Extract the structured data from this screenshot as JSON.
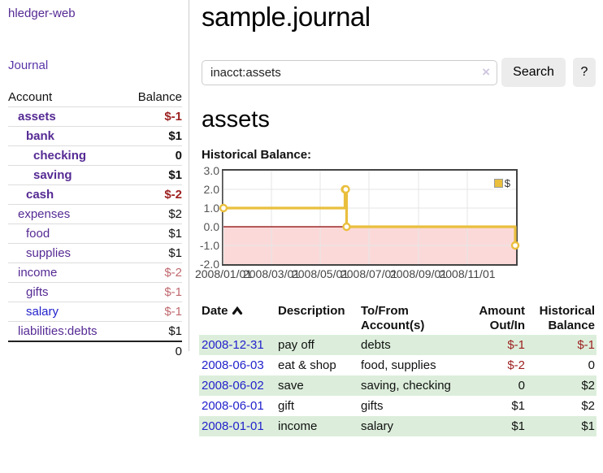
{
  "sidebar": {
    "app_title": "hledger-web",
    "journal_label": "Journal",
    "accounts_table": {
      "header_account": "Account",
      "header_balance": "Balance",
      "rows": [
        {
          "label": "assets",
          "level": 1,
          "bold": true,
          "link_color": "purple",
          "balance": "$-1",
          "balance_style": "neg"
        },
        {
          "label": "bank",
          "level": 2,
          "bold": true,
          "link_color": "purple",
          "balance": "$1",
          "balance_style": "plain"
        },
        {
          "label": "checking",
          "level": 3,
          "bold": true,
          "link_color": "purple",
          "balance": "0",
          "balance_style": "plain"
        },
        {
          "label": "saving",
          "level": 3,
          "bold": true,
          "link_color": "purple",
          "balance": "$1",
          "balance_style": "plain"
        },
        {
          "label": "cash",
          "level": 2,
          "bold": true,
          "link_color": "purple",
          "balance": "$-2",
          "balance_style": "neg"
        },
        {
          "label": "expenses",
          "level": 1,
          "bold": false,
          "link_color": "purple",
          "balance": "$2",
          "balance_style": "plain"
        },
        {
          "label": "food",
          "level": 2,
          "bold": false,
          "link_color": "purple",
          "balance": "$1",
          "balance_style": "plain"
        },
        {
          "label": "supplies",
          "level": 2,
          "bold": false,
          "link_color": "purple",
          "balance": "$1",
          "balance_style": "plain"
        },
        {
          "label": "income",
          "level": 1,
          "bold": false,
          "link_color": "purple",
          "balance": "$-2",
          "balance_style": "neg-muted"
        },
        {
          "label": "gifts",
          "level": 2,
          "bold": false,
          "link_color": "purple",
          "balance": "$-1",
          "balance_style": "neg-muted"
        },
        {
          "label": "salary",
          "level": 2,
          "bold": false,
          "link_color": "blue",
          "balance": "$-1",
          "balance_style": "neg-muted"
        },
        {
          "label": "liabilities:debts",
          "level": 1,
          "bold": false,
          "link_color": "purple",
          "balance": "$1",
          "balance_style": "plain"
        }
      ],
      "total": "0"
    }
  },
  "main": {
    "title": "sample.journal",
    "search": {
      "value": "inacct:assets",
      "clear_icon": "×",
      "search_button": "Search",
      "help_button": "?"
    },
    "account_heading": "assets",
    "chart_heading": "Historical Balance:"
  },
  "chart_data": {
    "type": "line",
    "style": "step",
    "title": "Historical Balance",
    "xlim": [
      "2008-01-01",
      "2009-01-01"
    ],
    "ylim": [
      -2,
      3
    ],
    "x_ticks": [
      "2008/01/01",
      "2008/03/01",
      "2008/05/01",
      "2008/07/01",
      "2008/09/01",
      "2008/11/01"
    ],
    "y_ticks": [
      "3.0",
      "2.0",
      "1.0",
      "0.0",
      "-1.0",
      "-2.0"
    ],
    "grid": true,
    "legend_position": "top-right",
    "series": [
      {
        "name": "$",
        "color": "#e9bf3d",
        "points": [
          [
            "2008-01-01",
            1
          ],
          [
            "2008-06-01",
            2
          ],
          [
            "2008-06-02",
            2
          ],
          [
            "2008-06-03",
            0
          ],
          [
            "2008-12-31",
            -1
          ]
        ]
      }
    ],
    "negative_region_color": "#fbd9d9",
    "zero_line_color": "#8b0000",
    "grid_color": "#e6e6e6"
  },
  "transactions_table": {
    "headers": {
      "date": "Date",
      "description": "Description",
      "accounts": "To/From Account(s)",
      "amount": "Amount Out/In",
      "balance": "Historical Balance"
    },
    "sort_column": "date",
    "sort_direction": "ascending",
    "rows": [
      {
        "date": "2008-12-31",
        "description": "pay off",
        "accounts": "debts",
        "amount": "$-1",
        "amount_negative": true,
        "balance": "$-1",
        "balance_negative": true
      },
      {
        "date": "2008-06-03",
        "description": "eat & shop",
        "accounts": "food, supplies",
        "amount": "$-2",
        "amount_negative": true,
        "balance": "0",
        "balance_negative": false
      },
      {
        "date": "2008-06-02",
        "description": "save",
        "accounts": "saving, checking",
        "amount": "0",
        "amount_negative": false,
        "balance": "$2",
        "balance_negative": false
      },
      {
        "date": "2008-06-01",
        "description": "gift",
        "accounts": "gifts",
        "amount": "$1",
        "amount_negative": false,
        "balance": "$2",
        "balance_negative": false
      },
      {
        "date": "2008-01-01",
        "description": "income",
        "accounts": "salary",
        "amount": "$1",
        "amount_negative": false,
        "balance": "$1",
        "balance_negative": false
      }
    ]
  }
}
